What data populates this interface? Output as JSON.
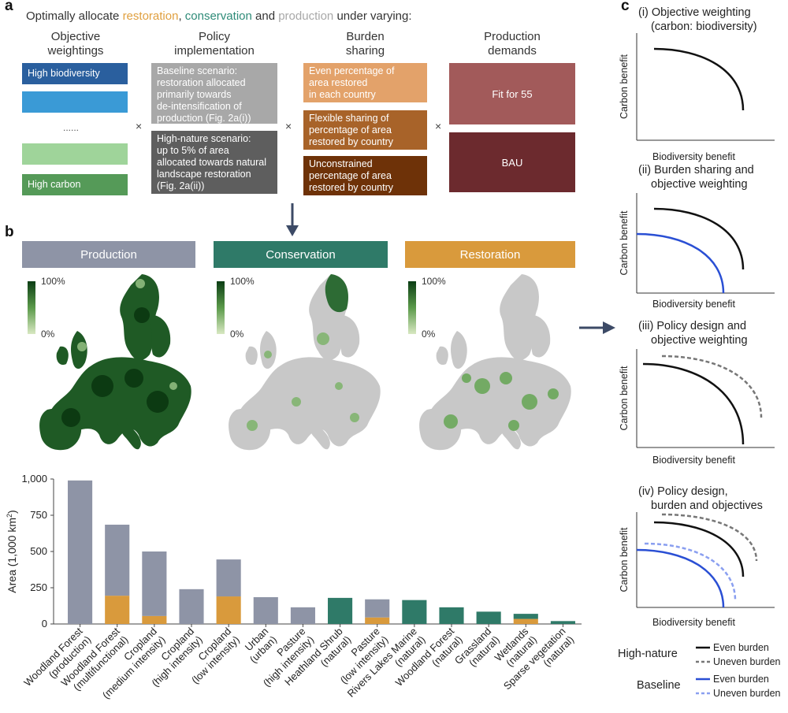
{
  "panel_a": {
    "letter": "a",
    "headline_parts": [
      "Optimally allocate ",
      "restoration",
      ", ",
      "conservation",
      " and ",
      "production",
      " under varying:"
    ],
    "columns": [
      {
        "line1": "Objective",
        "line2": "weightings"
      },
      {
        "line1": "Policy",
        "line2": "implementation"
      },
      {
        "line1": "Burden",
        "line2": "sharing"
      },
      {
        "line1": "Production",
        "line2": "demands"
      }
    ],
    "weightings": {
      "top": "High biodiversity",
      "ellipsis": "......",
      "bottom": "High carbon"
    },
    "policy": {
      "baseline": [
        "Baseline scenario:",
        "restoration allocated",
        "primarily towards",
        "de-intensification of",
        "production (Fig. 2a(i))"
      ],
      "high_nature": [
        "High-nature scenario:",
        "up to 5% of area",
        "allocated towards natural",
        "landscape restoration",
        "(Fig. 2a(ii))"
      ]
    },
    "burden": {
      "even": [
        "Even percentage of",
        "area restored",
        "in each country"
      ],
      "flexible": [
        "Flexible sharing of",
        "percentage of area",
        "restored by country"
      ],
      "unconstrained": [
        "Unconstrained",
        "percentage of area",
        "restored by country"
      ]
    },
    "demands": {
      "fit55": "Fit for 55",
      "bau": "BAU"
    },
    "times": "×",
    "colors": {
      "restoration": "#e0a040",
      "conservation": "#2e8b78",
      "production": "#a8a8a8"
    }
  },
  "panel_b": {
    "letter": "b",
    "categories": [
      {
        "label": "Production",
        "color": "#8e94a6"
      },
      {
        "label": "Conservation",
        "color": "#2f7a68"
      },
      {
        "label": "Restoration",
        "color": "#d99a3c"
      }
    ],
    "scale": {
      "max": "100%",
      "min": "0%"
    }
  },
  "chart_data": {
    "type": "bar",
    "stacked": true,
    "ylabel_main": "Area (1,000 km",
    "ylabel_sup": "2",
    "ylabel_end": ")",
    "ylim": [
      0,
      1000
    ],
    "yticks": [
      "0",
      "250",
      "500",
      "750",
      "1,000"
    ],
    "ytick_values": [
      0,
      250,
      500,
      750,
      1000
    ],
    "categories": [
      [
        "Woodland Forest",
        "(production)"
      ],
      [
        "Woodland Forest",
        "(multifunctional)"
      ],
      [
        "Cropland",
        "(medium intensity)"
      ],
      [
        "Cropland",
        "(high intensity)"
      ],
      [
        "Cropland",
        "(low intensity)"
      ],
      [
        "Urban",
        "(urban)"
      ],
      [
        "Pasture",
        "(high intensity)"
      ],
      [
        "Heathland Shrub",
        "(natural)"
      ],
      [
        "Pasture",
        "(low intensity)"
      ],
      [
        "Rivers Lakes Marine",
        "(natural)"
      ],
      [
        "Woodland Forest",
        "(natural)"
      ],
      [
        "Grassland",
        "(natural)"
      ],
      [
        "Wetlands",
        "(natural)"
      ],
      [
        "Sparse vegetation",
        "(natural)"
      ]
    ],
    "series": [
      {
        "key": "restoration",
        "color": "#d99a3c",
        "values": [
          0,
          195,
          55,
          0,
          190,
          0,
          0,
          0,
          45,
          0,
          0,
          0,
          35,
          0
        ]
      },
      {
        "key": "production",
        "color": "#8e94a6",
        "values": [
          990,
          490,
          445,
          240,
          255,
          185,
          115,
          0,
          125,
          0,
          0,
          0,
          0,
          0
        ]
      },
      {
        "key": "conservation",
        "color": "#2f7a68",
        "values": [
          0,
          0,
          0,
          0,
          0,
          0,
          0,
          180,
          0,
          165,
          115,
          85,
          35,
          20
        ]
      }
    ]
  },
  "panel_c": {
    "letter": "c",
    "plots": [
      {
        "title": [
          "(i) Objective weighting",
          "(carbon: biodiversity)"
        ]
      },
      {
        "title": [
          "(ii) Burden sharing and",
          "objective weighting"
        ]
      },
      {
        "title": [
          "(iii) Policy design and",
          "objective weighting"
        ]
      },
      {
        "title": [
          "(iv) Policy design,",
          "burden and objectives"
        ]
      }
    ],
    "ylabel": "Carbon benefit",
    "xlabel": "Biodiversity benefit",
    "legend": {
      "high_nature": "High-nature",
      "baseline": "Baseline",
      "even": "Even burden",
      "uneven": "Uneven burden",
      "colors": {
        "high_nature": "#111111",
        "high_nature_uneven": "#777777",
        "baseline": "#2a4fd4",
        "baseline_uneven": "#8a9ff0"
      }
    }
  }
}
